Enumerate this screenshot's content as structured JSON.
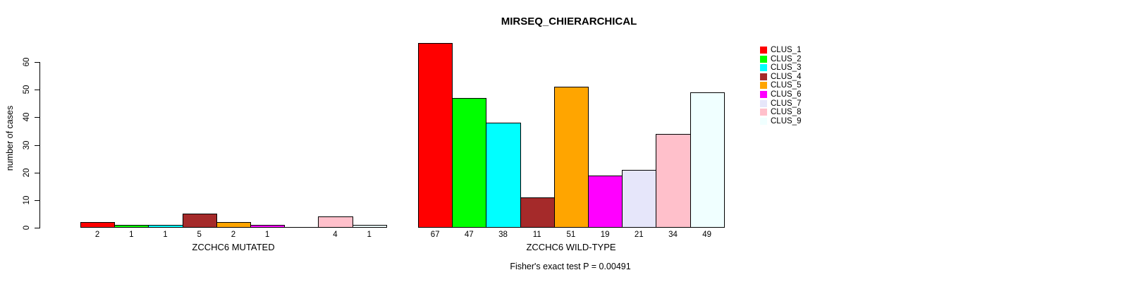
{
  "chart_data": {
    "type": "bar",
    "title": "MIRSEQ_CHIERARCHICAL",
    "ylabel": "number of cases",
    "footnote": "Fisher's exact test P = 0.00491",
    "ylim": [
      0,
      68
    ],
    "yticks": [
      0,
      10,
      20,
      30,
      40,
      50,
      60
    ],
    "grid": false,
    "legend_position": "right",
    "legend": [
      {
        "label": "CLUS_1",
        "color": "#FF0000"
      },
      {
        "label": "CLUS_2",
        "color": "#00FF00"
      },
      {
        "label": "CLUS_3",
        "color": "#00FFFF"
      },
      {
        "label": "CLUS_4",
        "color": "#A52A2A"
      },
      {
        "label": "CLUS_5",
        "color": "#FFA500"
      },
      {
        "label": "CLUS_6",
        "color": "#FF00FF"
      },
      {
        "label": "CLUS_7",
        "color": "#E6E6FA"
      },
      {
        "label": "CLUS_8",
        "color": "#FFC0CB"
      },
      {
        "label": "CLUS_9",
        "color": "#F0FFFF"
      }
    ],
    "groups": [
      {
        "label": "ZCCHC6 MUTATED",
        "values": [
          2,
          1,
          1,
          5,
          2,
          1,
          0,
          4,
          1
        ],
        "bar_labels": [
          "2",
          "1",
          "1",
          "5",
          "2",
          "1",
          "",
          "4",
          "1"
        ]
      },
      {
        "label": "ZCCHC6 WILD-TYPE",
        "values": [
          67,
          47,
          38,
          11,
          51,
          19,
          21,
          34,
          49
        ],
        "bar_labels": [
          "67",
          "47",
          "38",
          "11",
          "51",
          "19",
          "21",
          "34",
          "49"
        ]
      }
    ]
  }
}
